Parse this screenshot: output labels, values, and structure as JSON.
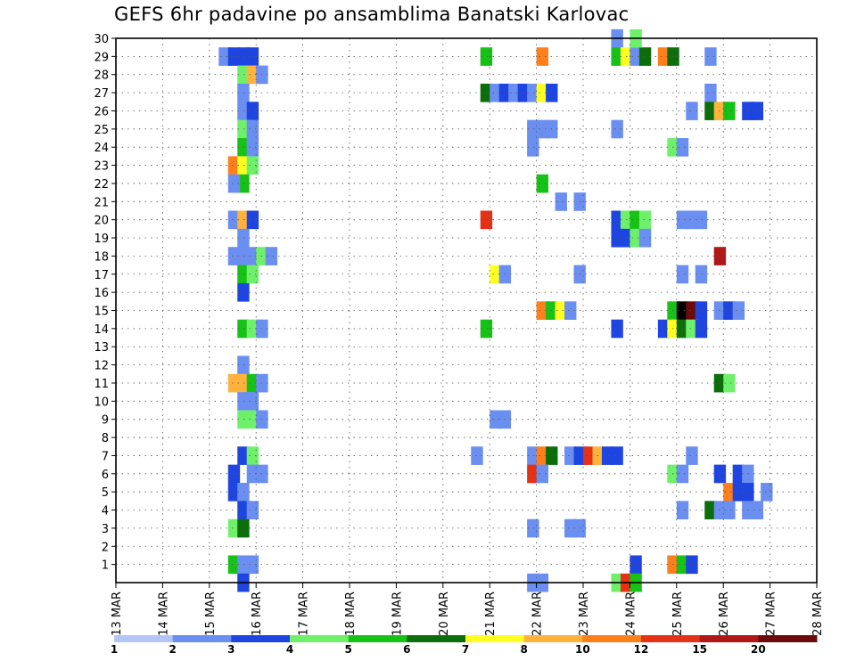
{
  "chart_data": {
    "type": "heatmap",
    "title": "GEFS 6hr padavine po ansamblima Banatski Karlovac",
    "x_ticks": [
      "13 MAR",
      "14 MAR",
      "15 MAR",
      "16 MAR",
      "17 MAR",
      "18 MAR",
      "19 MAR",
      "20 MAR",
      "21 MAR",
      "22 MAR",
      "23 MAR",
      "24 MAR",
      "25 MAR",
      "26 MAR",
      "27 MAR",
      "28 MAR"
    ],
    "y_ticks": [
      "1",
      "2",
      "3",
      "4",
      "5",
      "6",
      "7",
      "8",
      "9",
      "10",
      "11",
      "12",
      "13",
      "14",
      "15",
      "16",
      "17",
      "18",
      "19",
      "20",
      "21",
      "22",
      "23",
      "24",
      "25",
      "26",
      "27",
      "28",
      "29",
      "30"
    ],
    "y_range": [
      0,
      30
    ],
    "x_range_days": [
      13,
      28
    ],
    "x_unit": "MAR",
    "grid": true,
    "colorbar": {
      "levels": [
        "1",
        "2",
        "3",
        "4",
        "5",
        "6",
        "7",
        "8",
        "10",
        "12",
        "15",
        "20"
      ],
      "colors": [
        "#b3c6f5",
        "#6b8ff0",
        "#1f45e0",
        "#6ff06b",
        "#17c217",
        "#0b6e0b",
        "#ffff22",
        "#ffb23c",
        "#ff7f1a",
        "#e53217",
        "#b01717",
        "#6e0a0a"
      ]
    },
    "cells": [
      [
        15.2,
        29,
        1
      ],
      [
        15.4,
        29,
        2
      ],
      [
        15.6,
        29,
        2
      ],
      [
        15.8,
        29,
        2
      ],
      [
        15.6,
        28,
        3
      ],
      [
        15.8,
        28,
        7
      ],
      [
        16.0,
        28,
        1
      ],
      [
        15.6,
        27,
        1
      ],
      [
        15.6,
        26,
        1
      ],
      [
        15.8,
        26,
        2
      ],
      [
        15.6,
        25,
        3
      ],
      [
        15.8,
        25,
        1
      ],
      [
        15.6,
        24,
        4
      ],
      [
        15.8,
        24,
        1
      ],
      [
        15.4,
        23,
        8
      ],
      [
        15.6,
        23,
        6
      ],
      [
        15.8,
        23,
        3
      ],
      [
        15.6,
        22,
        4
      ],
      [
        15.4,
        22,
        1
      ],
      [
        15.4,
        20,
        1
      ],
      [
        15.6,
        20,
        7
      ],
      [
        15.8,
        20,
        2
      ],
      [
        15.6,
        19,
        1
      ],
      [
        15.4,
        18,
        1
      ],
      [
        15.6,
        18,
        1
      ],
      [
        15.8,
        18,
        1
      ],
      [
        16.0,
        18,
        3
      ],
      [
        16.2,
        18,
        1
      ],
      [
        15.6,
        17,
        4
      ],
      [
        15.8,
        17,
        3
      ],
      [
        15.6,
        16,
        2
      ],
      [
        15.6,
        14,
        4
      ],
      [
        15.8,
        14,
        3
      ],
      [
        16.0,
        14,
        1
      ],
      [
        15.6,
        12,
        1
      ],
      [
        15.4,
        11,
        7
      ],
      [
        15.6,
        11,
        7
      ],
      [
        15.8,
        11,
        4
      ],
      [
        16.0,
        11,
        1
      ],
      [
        15.6,
        10,
        1
      ],
      [
        15.8,
        10,
        1
      ],
      [
        15.6,
        9,
        3
      ],
      [
        15.8,
        9,
        3
      ],
      [
        16.0,
        9,
        1
      ],
      [
        15.6,
        7,
        2
      ],
      [
        15.8,
        7,
        3
      ],
      [
        15.4,
        6,
        2
      ],
      [
        15.8,
        6,
        1
      ],
      [
        16.0,
        6,
        1
      ],
      [
        15.4,
        5,
        2
      ],
      [
        15.6,
        5,
        1
      ],
      [
        15.6,
        4,
        2
      ],
      [
        15.8,
        4,
        1
      ],
      [
        15.4,
        3,
        3
      ],
      [
        15.6,
        3,
        5
      ],
      [
        15.4,
        1,
        4
      ],
      [
        15.6,
        1,
        1
      ],
      [
        15.8,
        1,
        1
      ],
      [
        15.6,
        0,
        2
      ],
      [
        20.8,
        29,
        4
      ],
      [
        22.0,
        29,
        8
      ],
      [
        20.8,
        27,
        5
      ],
      [
        21.0,
        27,
        1
      ],
      [
        21.2,
        27,
        2
      ],
      [
        21.4,
        27,
        1
      ],
      [
        21.6,
        27,
        2
      ],
      [
        21.8,
        27,
        1
      ],
      [
        22.0,
        27,
        6
      ],
      [
        22.2,
        27,
        2
      ],
      [
        21.8,
        25,
        1
      ],
      [
        22.0,
        25,
        1
      ],
      [
        22.2,
        25,
        1
      ],
      [
        21.8,
        24,
        1
      ],
      [
        22.0,
        22,
        4
      ],
      [
        22.4,
        21,
        1
      ],
      [
        22.8,
        21,
        1
      ],
      [
        20.8,
        20,
        9
      ],
      [
        21.0,
        17,
        6
      ],
      [
        21.2,
        17,
        1
      ],
      [
        22.8,
        17,
        1
      ],
      [
        22.0,
        15,
        8
      ],
      [
        22.2,
        15,
        4
      ],
      [
        22.4,
        15,
        6
      ],
      [
        22.6,
        15,
        1
      ],
      [
        20.8,
        14,
        4
      ],
      [
        21.0,
        9,
        1
      ],
      [
        21.2,
        9,
        1
      ],
      [
        20.6,
        7,
        1
      ],
      [
        21.8,
        7,
        1
      ],
      [
        22.0,
        7,
        8
      ],
      [
        22.2,
        7,
        5
      ],
      [
        22.6,
        7,
        1
      ],
      [
        22.8,
        7,
        2
      ],
      [
        23.0,
        7,
        9
      ],
      [
        23.2,
        7,
        7
      ],
      [
        23.4,
        7,
        2
      ],
      [
        23.6,
        7,
        2
      ],
      [
        21.8,
        6,
        9
      ],
      [
        22.0,
        6,
        1
      ],
      [
        21.8,
        3,
        1
      ],
      [
        22.6,
        3,
        1
      ],
      [
        22.8,
        3,
        1
      ],
      [
        21.8,
        0,
        1
      ],
      [
        22.0,
        0,
        1
      ],
      [
        23.6,
        30,
        1
      ],
      [
        23.6,
        29,
        4
      ],
      [
        23.8,
        29,
        6
      ],
      [
        24.0,
        29,
        1
      ],
      [
        24.2,
        29,
        5
      ],
      [
        24.6,
        29,
        8
      ],
      [
        24.8,
        29,
        5
      ],
      [
        25.6,
        29,
        1
      ],
      [
        24.0,
        30,
        3
      ],
      [
        25.6,
        27,
        1
      ],
      [
        25.2,
        26,
        1
      ],
      [
        25.6,
        26,
        5
      ],
      [
        25.8,
        26,
        7
      ],
      [
        26.0,
        26,
        4
      ],
      [
        26.4,
        26,
        2
      ],
      [
        26.6,
        26,
        2
      ],
      [
        23.6,
        25,
        1
      ],
      [
        24.8,
        24,
        3
      ],
      [
        25.0,
        24,
        1
      ],
      [
        23.6,
        20,
        2
      ],
      [
        23.8,
        20,
        3
      ],
      [
        24.0,
        20,
        4
      ],
      [
        24.2,
        20,
        3
      ],
      [
        25.0,
        20,
        1
      ],
      [
        25.2,
        20,
        1
      ],
      [
        25.4,
        20,
        1
      ],
      [
        23.6,
        19,
        2
      ],
      [
        23.8,
        19,
        2
      ],
      [
        24.0,
        19,
        3
      ],
      [
        24.2,
        19,
        1
      ],
      [
        25.8,
        18,
        10
      ],
      [
        25.0,
        17,
        1
      ],
      [
        25.4,
        17,
        1
      ],
      [
        24.8,
        15,
        4
      ],
      [
        25.0,
        15,
        12
      ],
      [
        25.2,
        15,
        11
      ],
      [
        25.4,
        15,
        2
      ],
      [
        25.8,
        15,
        1
      ],
      [
        26.0,
        15,
        2
      ],
      [
        26.2,
        15,
        1
      ],
      [
        23.6,
        14,
        2
      ],
      [
        24.6,
        14,
        2
      ],
      [
        24.8,
        14,
        6
      ],
      [
        25.0,
        14,
        5
      ],
      [
        25.2,
        14,
        3
      ],
      [
        25.4,
        14,
        2
      ],
      [
        25.8,
        11,
        5
      ],
      [
        26.0,
        11,
        3
      ],
      [
        25.2,
        7,
        1
      ],
      [
        24.8,
        6,
        3
      ],
      [
        25.0,
        6,
        1
      ],
      [
        25.8,
        6,
        2
      ],
      [
        26.2,
        6,
        2
      ],
      [
        26.4,
        6,
        1
      ],
      [
        26.0,
        5,
        8
      ],
      [
        26.2,
        5,
        2
      ],
      [
        26.4,
        5,
        2
      ],
      [
        26.8,
        5,
        1
      ],
      [
        25.0,
        4,
        1
      ],
      [
        25.6,
        4,
        5
      ],
      [
        25.8,
        4,
        1
      ],
      [
        26.0,
        4,
        1
      ],
      [
        26.4,
        4,
        1
      ],
      [
        26.6,
        4,
        1
      ],
      [
        24.0,
        1,
        2
      ],
      [
        24.8,
        1,
        8
      ],
      [
        25.0,
        1,
        4
      ],
      [
        25.2,
        1,
        2
      ],
      [
        23.6,
        0,
        3
      ],
      [
        23.8,
        0,
        9
      ],
      [
        24.0,
        0,
        4
      ]
    ]
  }
}
